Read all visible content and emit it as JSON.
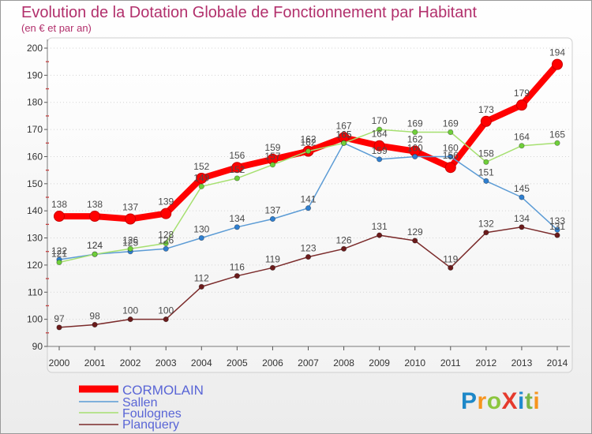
{
  "chart_data": {
    "type": "line",
    "title": "Evolution de la Dotation Globale de Fonctionnement par Habitant",
    "subtitle": "(en € et par an)",
    "x": [
      "2000",
      "2001",
      "2002",
      "2003",
      "2004",
      "2005",
      "2006",
      "2007",
      "2008",
      "2009",
      "2010",
      "2011",
      "2012",
      "2013",
      "2014"
    ],
    "ylim": [
      90,
      200
    ],
    "yticks": [
      90,
      100,
      110,
      120,
      130,
      140,
      150,
      160,
      170,
      180,
      190,
      200
    ],
    "grid": true,
    "legend": "bottom-left",
    "series": [
      {
        "name": "CORMOLAIN",
        "color": "#ff0000",
        "marker": "#ff0000",
        "values": [
          138,
          138,
          137,
          139,
          152,
          156,
          159,
          162,
          167,
          164,
          162,
          156,
          173,
          179,
          194
        ]
      },
      {
        "name": "Sallen",
        "color": "#5b9bd5",
        "marker": "#2f7fd0",
        "values": [
          122,
          124,
          125,
          126,
          130,
          134,
          137,
          141,
          165,
          159,
          160,
          160,
          151,
          145,
          133
        ]
      },
      {
        "name": "Foulognes",
        "color": "#a6e070",
        "marker": "#6fcf3a",
        "values": [
          121,
          124,
          126,
          128,
          149,
          152,
          157,
          162,
          165,
          170,
          169,
          169,
          158,
          164,
          165
        ]
      },
      {
        "name": "Planquery",
        "color": "#7b2b2b",
        "marker": "#6b1b1b",
        "values": [
          97,
          98,
          100,
          100,
          112,
          116,
          119,
          123,
          126,
          131,
          129,
          119,
          132,
          134,
          131
        ]
      }
    ]
  },
  "logo": {
    "letters": [
      {
        "char": "P",
        "color": "#1e88c8"
      },
      {
        "char": "r",
        "color": "#f7941d"
      },
      {
        "char": "o",
        "color": "#8cc63e"
      },
      {
        "char": "X",
        "color": "#e53a2d"
      },
      {
        "char": "i",
        "color": "#1f8ad0"
      },
      {
        "char": "t",
        "color": "#7ab648"
      },
      {
        "char": "i",
        "color": "#f7941d"
      }
    ]
  }
}
